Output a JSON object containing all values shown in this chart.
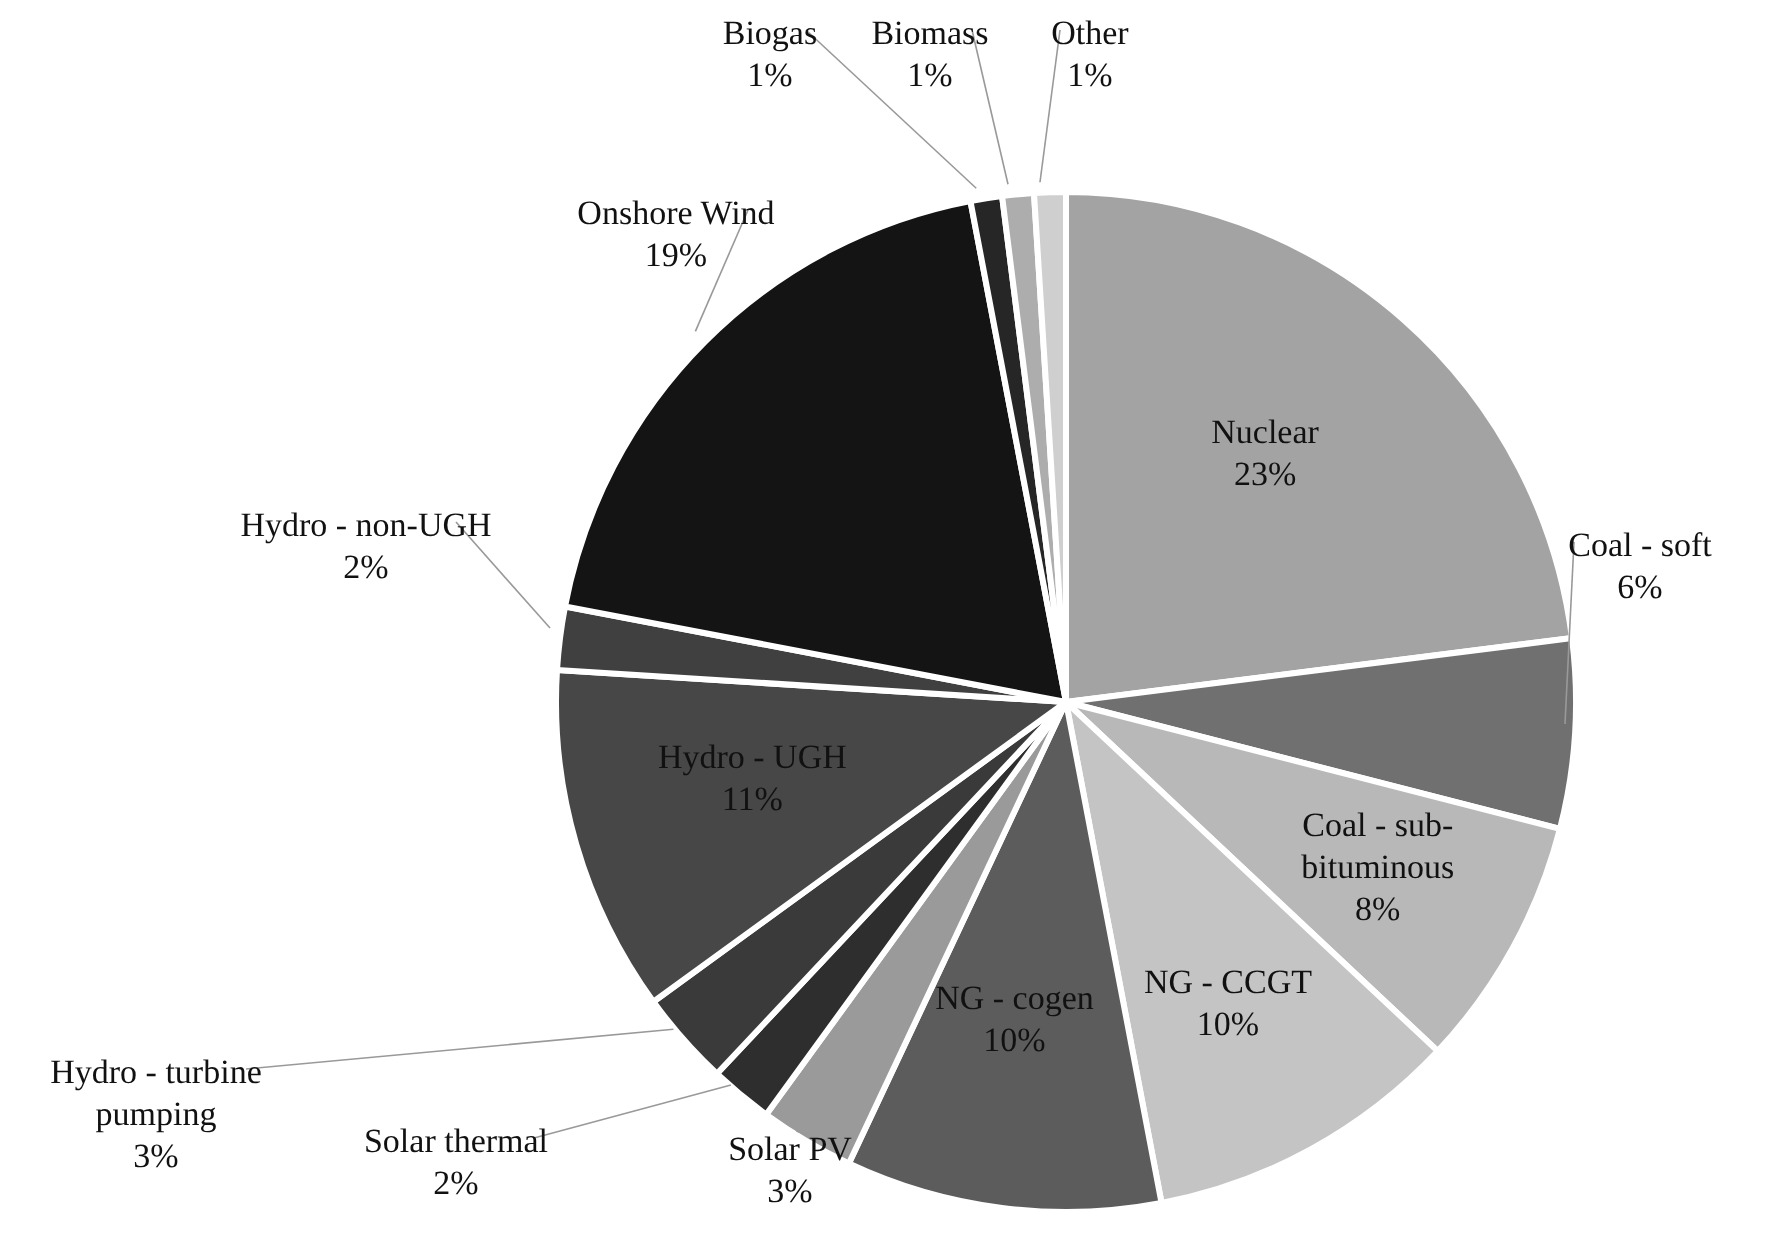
{
  "chart_data": {
    "type": "pie",
    "categories": [
      "Nuclear",
      "Coal - soft",
      "Coal - sub-bituminous",
      "NG - CCGT",
      "NG - cogen",
      "Solar PV",
      "Solar thermal",
      "Hydro - turbine pumping",
      "Hydro - UGH",
      "Hydro - non-UGH",
      "Onshore Wind",
      "Biogas",
      "Biomass",
      "Other"
    ],
    "values": [
      23,
      6,
      8,
      10,
      10,
      3,
      2,
      3,
      11,
      2,
      19,
      1,
      1,
      1
    ],
    "colors": [
      "#a3a3a3",
      "#707070",
      "#b8b8b8",
      "#c4c4c4",
      "#5c5c5c",
      "#9a9a9a",
      "#2e2e2e",
      "#3a3a3a",
      "#474747",
      "#404040",
      "#141414",
      "#262626",
      "#adadad",
      "#cfcfcf"
    ],
    "value_labels": [
      "23%",
      "6%",
      "8%",
      "10%",
      "10%",
      "3%",
      "2%",
      "3%",
      "11%",
      "2%",
      "19%",
      "1%",
      "1%",
      "1%"
    ]
  }
}
